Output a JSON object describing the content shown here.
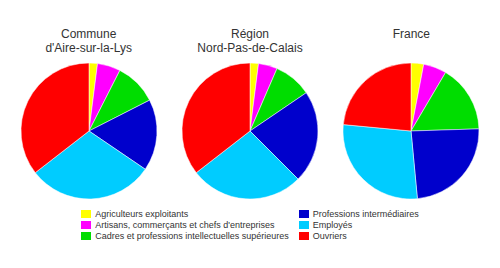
{
  "chart_data": [
    {
      "type": "pie",
      "title": "Commune\nd'Aire-sur-la-Lys",
      "categories": [
        "Agriculteurs exploitants",
        "Artisans, commerçants et chefs d'entreprises",
        "Cadres et professions intellectuelles supérieures",
        "Professions intermédiaires",
        "Employés",
        "Ouvriers"
      ],
      "values": [
        2.0,
        5.5,
        10.0,
        17.0,
        30.0,
        35.5
      ],
      "colors": [
        "#ffff00",
        "#ff00ff",
        "#00dd00",
        "#0000cc",
        "#00ccff",
        "#ff0000"
      ],
      "legend": "bottom"
    },
    {
      "type": "pie",
      "title": "Région\nNord-Pas-de-Calais",
      "categories": [
        "Agriculteurs exploitants",
        "Artisans, commerçants et chefs d'entreprises",
        "Cadres et professions intellectuelles supérieures",
        "Professions intermédiaires",
        "Employés",
        "Ouvriers"
      ],
      "values": [
        2.0,
        4.5,
        9.0,
        22.0,
        27.0,
        35.5
      ],
      "colors": [
        "#ffff00",
        "#ff00ff",
        "#00dd00",
        "#0000cc",
        "#00ccff",
        "#ff0000"
      ],
      "legend": "bottom"
    },
    {
      "type": "pie",
      "title": "France",
      "categories": [
        "Agriculteurs exploitants",
        "Artisans, commerçants et chefs d'entreprises",
        "Cadres et professions intellectuelles supérieures",
        "Professions intermédiaires",
        "Employés",
        "Ouvriers"
      ],
      "values": [
        3.0,
        5.5,
        16.0,
        24.0,
        28.0,
        23.5
      ],
      "colors": [
        "#ffff00",
        "#ff00ff",
        "#00dd00",
        "#0000cc",
        "#00ccff",
        "#ff0000"
      ],
      "legend": "bottom"
    }
  ]
}
